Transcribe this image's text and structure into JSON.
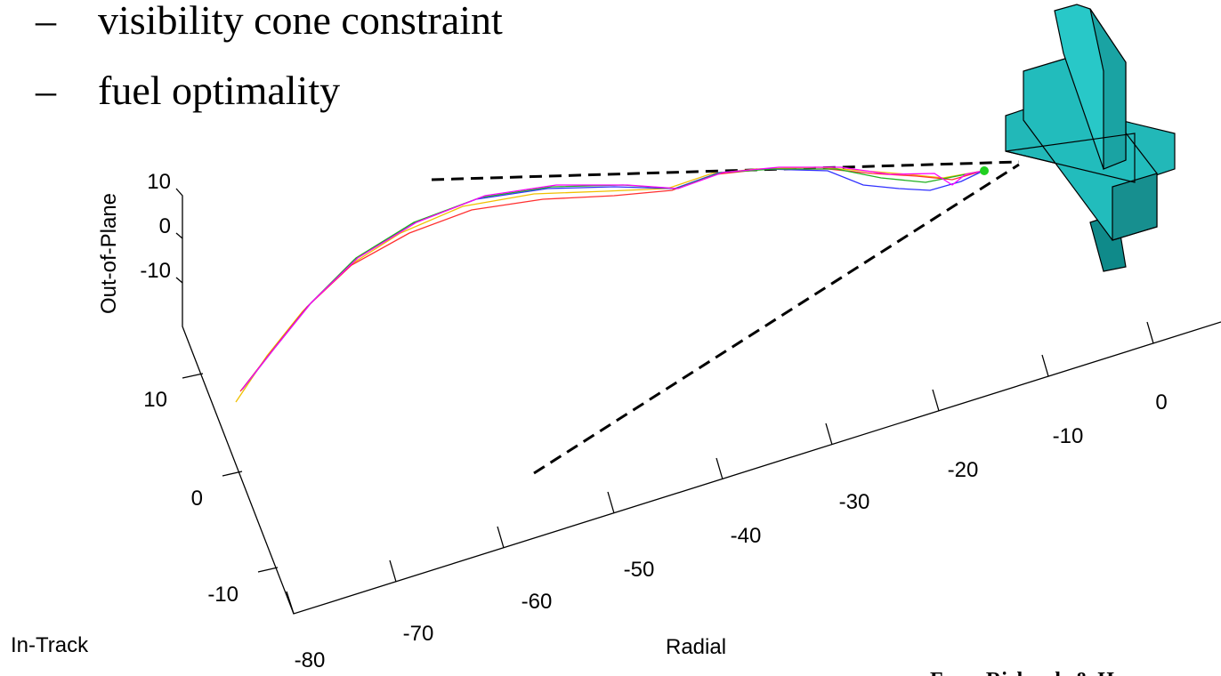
{
  "bullets": [
    "visibility cone constraint",
    "fuel optimality"
  ],
  "plot": {
    "z_label": "Out-of-Plane",
    "y_label": "In-Track",
    "x_label": "Radial",
    "z_ticks": [
      10,
      0,
      -10
    ],
    "y_ticks": [
      10,
      0,
      -10
    ],
    "x_ticks": [
      -80,
      -70,
      -60,
      -50,
      -40,
      -30,
      -20,
      -10,
      0
    ]
  },
  "caption": "From Richards & How"
}
